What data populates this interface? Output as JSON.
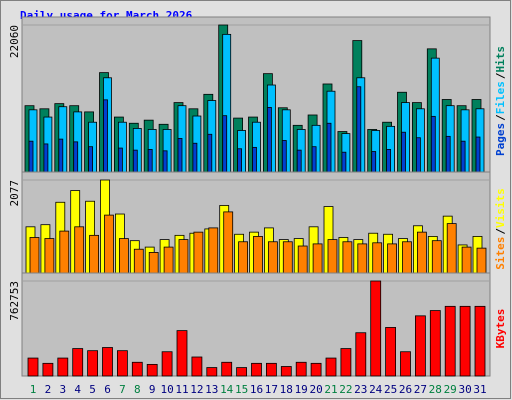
{
  "title": "Daily usage for March 2026",
  "legend_separator": "/",
  "chart_data": [
    {
      "type": "bar",
      "ylim": [
        0,
        22060
      ],
      "yticks": [
        22060
      ],
      "series": [
        {
          "name": "Hits",
          "color": "#00805c",
          "values": [
            10350,
            9900,
            10650,
            10350,
            9450,
            15150,
            8700,
            7800,
            8250,
            7650,
            10800,
            9900,
            12000,
            22060,
            8550,
            8700,
            15000,
            10050,
            7500,
            9000,
            13500,
            6600,
            19800,
            6900,
            7950,
            12300,
            10800,
            18600,
            11250,
            10350,
            11250
          ]
        },
        {
          "name": "Files",
          "color": "#00c0ff",
          "values": [
            9750,
            8700,
            10200,
            9450,
            7950,
            14400,
            7950,
            7050,
            6900,
            6900,
            10350,
            8850,
            11100,
            20700,
            6750,
            7950,
            13350,
            9750,
            6900,
            7500,
            12450,
            6300,
            14400,
            6750,
            7350,
            10800,
            9900,
            17250,
            10350,
            9750,
            9900
          ]
        },
        {
          "name": "Pages",
          "color": "#0040d0",
          "values": [
            5200,
            4800,
            5500,
            5100,
            4400,
            11200,
            4200,
            3900,
            4000,
            3800,
            5600,
            4900,
            6200,
            8900,
            4100,
            4300,
            10100,
            5300,
            3900,
            4400,
            7800,
            3600,
            13100,
            3700,
            4000,
            6500,
            5700,
            8800,
            5900,
            5200,
            5800
          ]
        }
      ]
    },
    {
      "type": "bar",
      "ylim": [
        0,
        2077
      ],
      "yticks": [
        2077
      ],
      "series": [
        {
          "name": "Visits",
          "color": "#ffff00",
          "values": [
            1085,
            1130,
            1605,
            1853,
            1627,
            2077,
            1356,
            791,
            655,
            814,
            904,
            949,
            1040,
            1537,
            927,
            972,
            1062,
            814,
            836,
            1085,
            1514,
            859,
            814,
            949,
            927,
            836,
            1107,
            881,
            1311,
            701,
            881
          ]
        },
        {
          "name": "Sites",
          "color": "#ff8000",
          "values": [
            859,
            836,
            994,
            1085,
            904,
            1333,
            836,
            610,
            542,
            655,
            814,
            972,
            1062,
            1401,
            768,
            881,
            768,
            768,
            678,
            723,
            814,
            768,
            723,
            746,
            723,
            768,
            972,
            791,
            1153,
            655,
            633
          ]
        }
      ]
    },
    {
      "type": "bar",
      "ylim": [
        0,
        762753
      ],
      "yticks": [
        762753
      ],
      "categories": [
        "1",
        "2",
        "3",
        "4",
        "5",
        "6",
        "7",
        "8",
        "9",
        "10",
        "11",
        "12",
        "13",
        "14",
        "15",
        "16",
        "17",
        "18",
        "19",
        "20",
        "21",
        "22",
        "23",
        "24",
        "25",
        "26",
        "27",
        "28",
        "29",
        "30",
        "31"
      ],
      "category_colors": [
        "#008040",
        "#000080",
        "#000080",
        "#000080",
        "#000080",
        "#000080",
        "#008040",
        "#008040",
        "#000080",
        "#000080",
        "#000080",
        "#000080",
        "#000080",
        "#008040",
        "#008040",
        "#000080",
        "#000080",
        "#000080",
        "#000080",
        "#000080",
        "#008040",
        "#008040",
        "#000080",
        "#000080",
        "#000080",
        "#000080",
        "#000080",
        "#008040",
        "#008040",
        "#000080",
        "#000080"
      ],
      "series": [
        {
          "name": "KBytes",
          "color": "#ff0000",
          "values": [
            144075,
            101700,
            144075,
            220350,
            203400,
            228825,
            203400,
            110175,
            93225,
            194925,
            364425,
            152550,
            67800,
            110175,
            67800,
            101700,
            101700,
            76275,
            110175,
            101700,
            144075,
            220350,
            347475,
            762753,
            389850,
            194925,
            483075,
            525450,
            559350,
            559350,
            559350
          ]
        }
      ]
    }
  ]
}
